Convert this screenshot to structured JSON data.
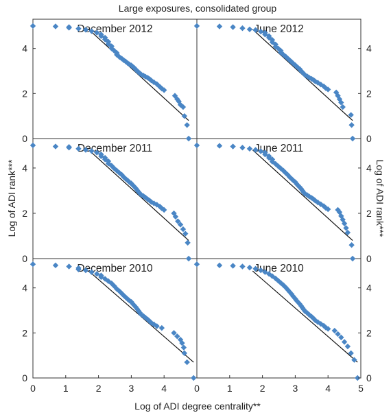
{
  "chart_data": {
    "type": "scatter",
    "title": "Large exposures, consolidated group",
    "xlabel": "Log of ADI degree centrality**",
    "ylabel_left": "Log of ADI rank***",
    "ylabel_right": "Log of ADI rank***",
    "xlim": [
      0,
      5
    ],
    "ylim": [
      0,
      5.3
    ],
    "x_ticks": [
      0,
      1,
      2,
      3,
      4,
      5
    ],
    "y_ticks": [
      0,
      2,
      4
    ],
    "marker_color": "#4a86c5",
    "fit_line_color": "#111111",
    "panels": [
      {
        "name": "December 2012",
        "fit": [
          [
            1.7,
            4.85
          ],
          [
            4.75,
            0.8
          ]
        ],
        "x": [
          0,
          0.69,
          1.1,
          1.1,
          1.39,
          1.61,
          1.79,
          1.95,
          2.08,
          2.08,
          2.2,
          2.2,
          2.3,
          2.3,
          2.4,
          2.4,
          2.48,
          2.56,
          2.56,
          2.64,
          2.71,
          2.77,
          2.83,
          2.89,
          2.94,
          3.0,
          3.04,
          3.09,
          3.14,
          3.18,
          3.22,
          3.26,
          3.3,
          3.37,
          3.43,
          3.5,
          3.56,
          3.61,
          3.69,
          3.78,
          3.87,
          3.93,
          4.0,
          4.33,
          4.4,
          4.45,
          4.5,
          4.58,
          4.62,
          4.7,
          4.75
        ],
        "y": [
          5.0,
          4.98,
          4.95,
          4.92,
          4.88,
          4.83,
          4.77,
          4.7,
          4.62,
          4.55,
          4.48,
          4.4,
          4.3,
          4.2,
          4.1,
          4.0,
          3.9,
          3.8,
          3.72,
          3.62,
          3.55,
          3.48,
          3.42,
          3.35,
          3.3,
          3.25,
          3.2,
          3.14,
          3.06,
          3.0,
          2.95,
          2.9,
          2.85,
          2.8,
          2.75,
          2.7,
          2.64,
          2.58,
          2.5,
          2.42,
          2.3,
          2.22,
          2.15,
          1.9,
          1.75,
          1.65,
          1.5,
          1.4,
          1.0,
          0.6,
          0.0
        ]
      },
      {
        "name": "June 2012",
        "fit": [
          [
            1.7,
            4.85
          ],
          [
            4.75,
            0.8
          ]
        ],
        "x": [
          0,
          0.69,
          1.1,
          1.39,
          1.61,
          1.79,
          1.95,
          2.08,
          2.08,
          2.2,
          2.2,
          2.3,
          2.3,
          2.4,
          2.4,
          2.48,
          2.56,
          2.56,
          2.64,
          2.71,
          2.77,
          2.83,
          2.89,
          2.94,
          3.0,
          3.04,
          3.09,
          3.14,
          3.18,
          3.22,
          3.26,
          3.3,
          3.37,
          3.43,
          3.5,
          3.56,
          3.61,
          3.69,
          3.78,
          3.87,
          3.93,
          4.0,
          4.25,
          4.3,
          4.35,
          4.4,
          4.45,
          4.7,
          4.72,
          4.75
        ],
        "y": [
          5.0,
          4.98,
          4.95,
          4.9,
          4.85,
          4.82,
          4.75,
          4.7,
          4.62,
          4.55,
          4.48,
          4.38,
          4.28,
          4.18,
          4.08,
          4.0,
          3.9,
          3.82,
          3.72,
          3.64,
          3.56,
          3.48,
          3.4,
          3.33,
          3.26,
          3.2,
          3.14,
          3.08,
          3.0,
          2.94,
          2.88,
          2.82,
          2.76,
          2.7,
          2.65,
          2.6,
          2.54,
          2.48,
          2.4,
          2.32,
          2.24,
          2.18,
          2.05,
          1.9,
          1.75,
          1.6,
          1.4,
          1.05,
          0.6,
          0.0
        ]
      },
      {
        "name": "December 2011",
        "fit": [
          [
            1.7,
            4.8
          ],
          [
            4.75,
            0.8
          ]
        ],
        "x": [
          0,
          0.69,
          1.1,
          1.1,
          1.39,
          1.61,
          1.79,
          1.95,
          2.08,
          2.08,
          2.2,
          2.2,
          2.3,
          2.3,
          2.4,
          2.48,
          2.56,
          2.64,
          2.71,
          2.77,
          2.83,
          2.89,
          2.94,
          3.0,
          3.04,
          3.09,
          3.14,
          3.18,
          3.22,
          3.26,
          3.3,
          3.37,
          3.43,
          3.5,
          3.56,
          3.61,
          3.69,
          3.78,
          3.87,
          3.93,
          4.0,
          4.3,
          4.35,
          4.42,
          4.5,
          4.58,
          4.65,
          4.72,
          4.75
        ],
        "y": [
          5.0,
          4.95,
          4.93,
          4.9,
          4.85,
          4.8,
          4.75,
          4.68,
          4.6,
          4.52,
          4.45,
          4.38,
          4.3,
          4.2,
          4.1,
          3.98,
          3.88,
          3.78,
          3.7,
          3.6,
          3.52,
          3.45,
          3.38,
          3.32,
          3.25,
          3.18,
          3.1,
          3.02,
          2.95,
          2.88,
          2.82,
          2.76,
          2.7,
          2.62,
          2.56,
          2.5,
          2.44,
          2.38,
          2.3,
          2.22,
          2.15,
          2.0,
          1.85,
          1.65,
          1.5,
          1.3,
          1.1,
          0.7,
          0.0
        ]
      },
      {
        "name": "June 2011",
        "fit": [
          [
            1.7,
            4.8
          ],
          [
            4.75,
            0.8
          ]
        ],
        "x": [
          0,
          0.69,
          1.1,
          1.39,
          1.61,
          1.79,
          1.95,
          2.08,
          2.08,
          2.2,
          2.2,
          2.3,
          2.3,
          2.4,
          2.48,
          2.56,
          2.64,
          2.71,
          2.77,
          2.83,
          2.89,
          2.94,
          3.0,
          3.04,
          3.09,
          3.14,
          3.18,
          3.22,
          3.26,
          3.3,
          3.37,
          3.43,
          3.5,
          3.56,
          3.61,
          3.69,
          3.78,
          3.87,
          3.93,
          4.0,
          4.3,
          4.35,
          4.4,
          4.45,
          4.5,
          4.55,
          4.6,
          4.72,
          4.75
        ],
        "y": [
          5.0,
          4.98,
          4.95,
          4.9,
          4.85,
          4.8,
          4.74,
          4.68,
          4.6,
          4.52,
          4.45,
          4.38,
          4.28,
          4.18,
          4.08,
          3.98,
          3.88,
          3.78,
          3.7,
          3.6,
          3.52,
          3.45,
          3.38,
          3.3,
          3.22,
          3.15,
          3.08,
          3.0,
          2.92,
          2.86,
          2.8,
          2.74,
          2.68,
          2.62,
          2.56,
          2.48,
          2.4,
          2.32,
          2.24,
          2.18,
          2.15,
          2.05,
          1.88,
          1.72,
          1.55,
          1.35,
          1.15,
          0.6,
          0.0
        ]
      },
      {
        "name": "December 2010",
        "fit": [
          [
            1.7,
            4.75
          ],
          [
            4.9,
            0.7
          ]
        ],
        "x": [
          0,
          0.69,
          1.1,
          1.39,
          1.39,
          1.61,
          1.79,
          1.95,
          2.08,
          2.08,
          2.2,
          2.3,
          2.4,
          2.48,
          2.56,
          2.64,
          2.71,
          2.77,
          2.83,
          2.89,
          2.94,
          3.0,
          3.04,
          3.09,
          3.14,
          3.18,
          3.22,
          3.26,
          3.3,
          3.37,
          3.43,
          3.5,
          3.56,
          3.61,
          3.69,
          3.78,
          3.93,
          4.3,
          4.4,
          4.5,
          4.55,
          4.6,
          4.62,
          4.7,
          4.9
        ],
        "y": [
          5.05,
          5.0,
          4.95,
          4.88,
          4.82,
          4.78,
          4.7,
          4.62,
          4.55,
          4.48,
          4.4,
          4.3,
          4.2,
          4.08,
          3.95,
          3.85,
          3.75,
          3.66,
          3.58,
          3.5,
          3.44,
          3.38,
          3.3,
          3.22,
          3.14,
          3.06,
          2.98,
          2.9,
          2.82,
          2.75,
          2.68,
          2.6,
          2.52,
          2.45,
          2.38,
          2.3,
          2.22,
          2.0,
          1.85,
          1.7,
          1.55,
          1.35,
          1.1,
          0.7,
          0.0
        ]
      },
      {
        "name": "June 2010",
        "fit": [
          [
            1.7,
            4.75
          ],
          [
            4.9,
            0.7
          ]
        ],
        "x": [
          0,
          0.69,
          1.1,
          1.39,
          1.61,
          1.79,
          1.95,
          2.08,
          2.2,
          2.3,
          2.4,
          2.48,
          2.56,
          2.64,
          2.71,
          2.77,
          2.83,
          2.89,
          2.94,
          3.0,
          3.04,
          3.09,
          3.14,
          3.18,
          3.22,
          3.26,
          3.3,
          3.37,
          3.43,
          3.5,
          3.56,
          3.61,
          3.69,
          3.78,
          3.87,
          3.93,
          4.0,
          4.2,
          4.3,
          4.4,
          4.5,
          4.6,
          4.7,
          4.8,
          4.9
        ],
        "y": [
          5.05,
          5.0,
          4.98,
          4.95,
          4.9,
          4.85,
          4.78,
          4.7,
          4.62,
          4.52,
          4.42,
          4.32,
          4.22,
          4.12,
          4.02,
          3.92,
          3.82,
          3.72,
          3.62,
          3.52,
          3.44,
          3.36,
          3.28,
          3.2,
          3.12,
          3.04,
          2.96,
          2.88,
          2.8,
          2.72,
          2.64,
          2.56,
          2.48,
          2.4,
          2.32,
          2.24,
          2.18,
          2.1,
          1.95,
          1.8,
          1.6,
          1.4,
          1.1,
          0.8,
          0.0
        ]
      }
    ]
  }
}
